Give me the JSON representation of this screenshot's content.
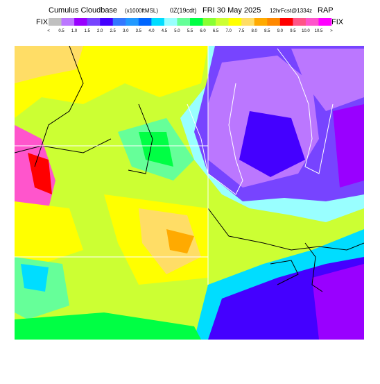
{
  "header": {
    "product": "Cumulus Cloudbase",
    "units": "(x1000ftMSL)",
    "time": "0Z(19cdt)",
    "date": "FRI 30 May 2025",
    "forecast": "12hrFcst@1334z",
    "model": "RAP"
  },
  "fix_left": "FIX",
  "fix_right": "FIX",
  "legend": {
    "labels": [
      "<",
      "0.5",
      "1.0",
      "1.5",
      "2.0",
      "2.5",
      "3.0",
      "3.5",
      "4.0",
      "4.5",
      "5.0",
      "5.5",
      "6.0",
      "6.5",
      "7.0",
      "7.5",
      "8.0",
      "8.5",
      "9.0",
      "9.5",
      "10.0",
      "10.5",
      ">"
    ],
    "colors": [
      "#c0c0c0",
      "#bb77ff",
      "#9900ff",
      "#7744ff",
      "#4400ff",
      "#3377ff",
      "#2299ff",
      "#0066ff",
      "#00ddff",
      "#99ffff",
      "#66ff99",
      "#00ff44",
      "#88ff33",
      "#ccff33",
      "#ffff00",
      "#ffdd66",
      "#ffaa00",
      "#ff8800",
      "#ff0000",
      "#ff5588",
      "#ff55cc",
      "#ff00ff"
    ]
  }
}
